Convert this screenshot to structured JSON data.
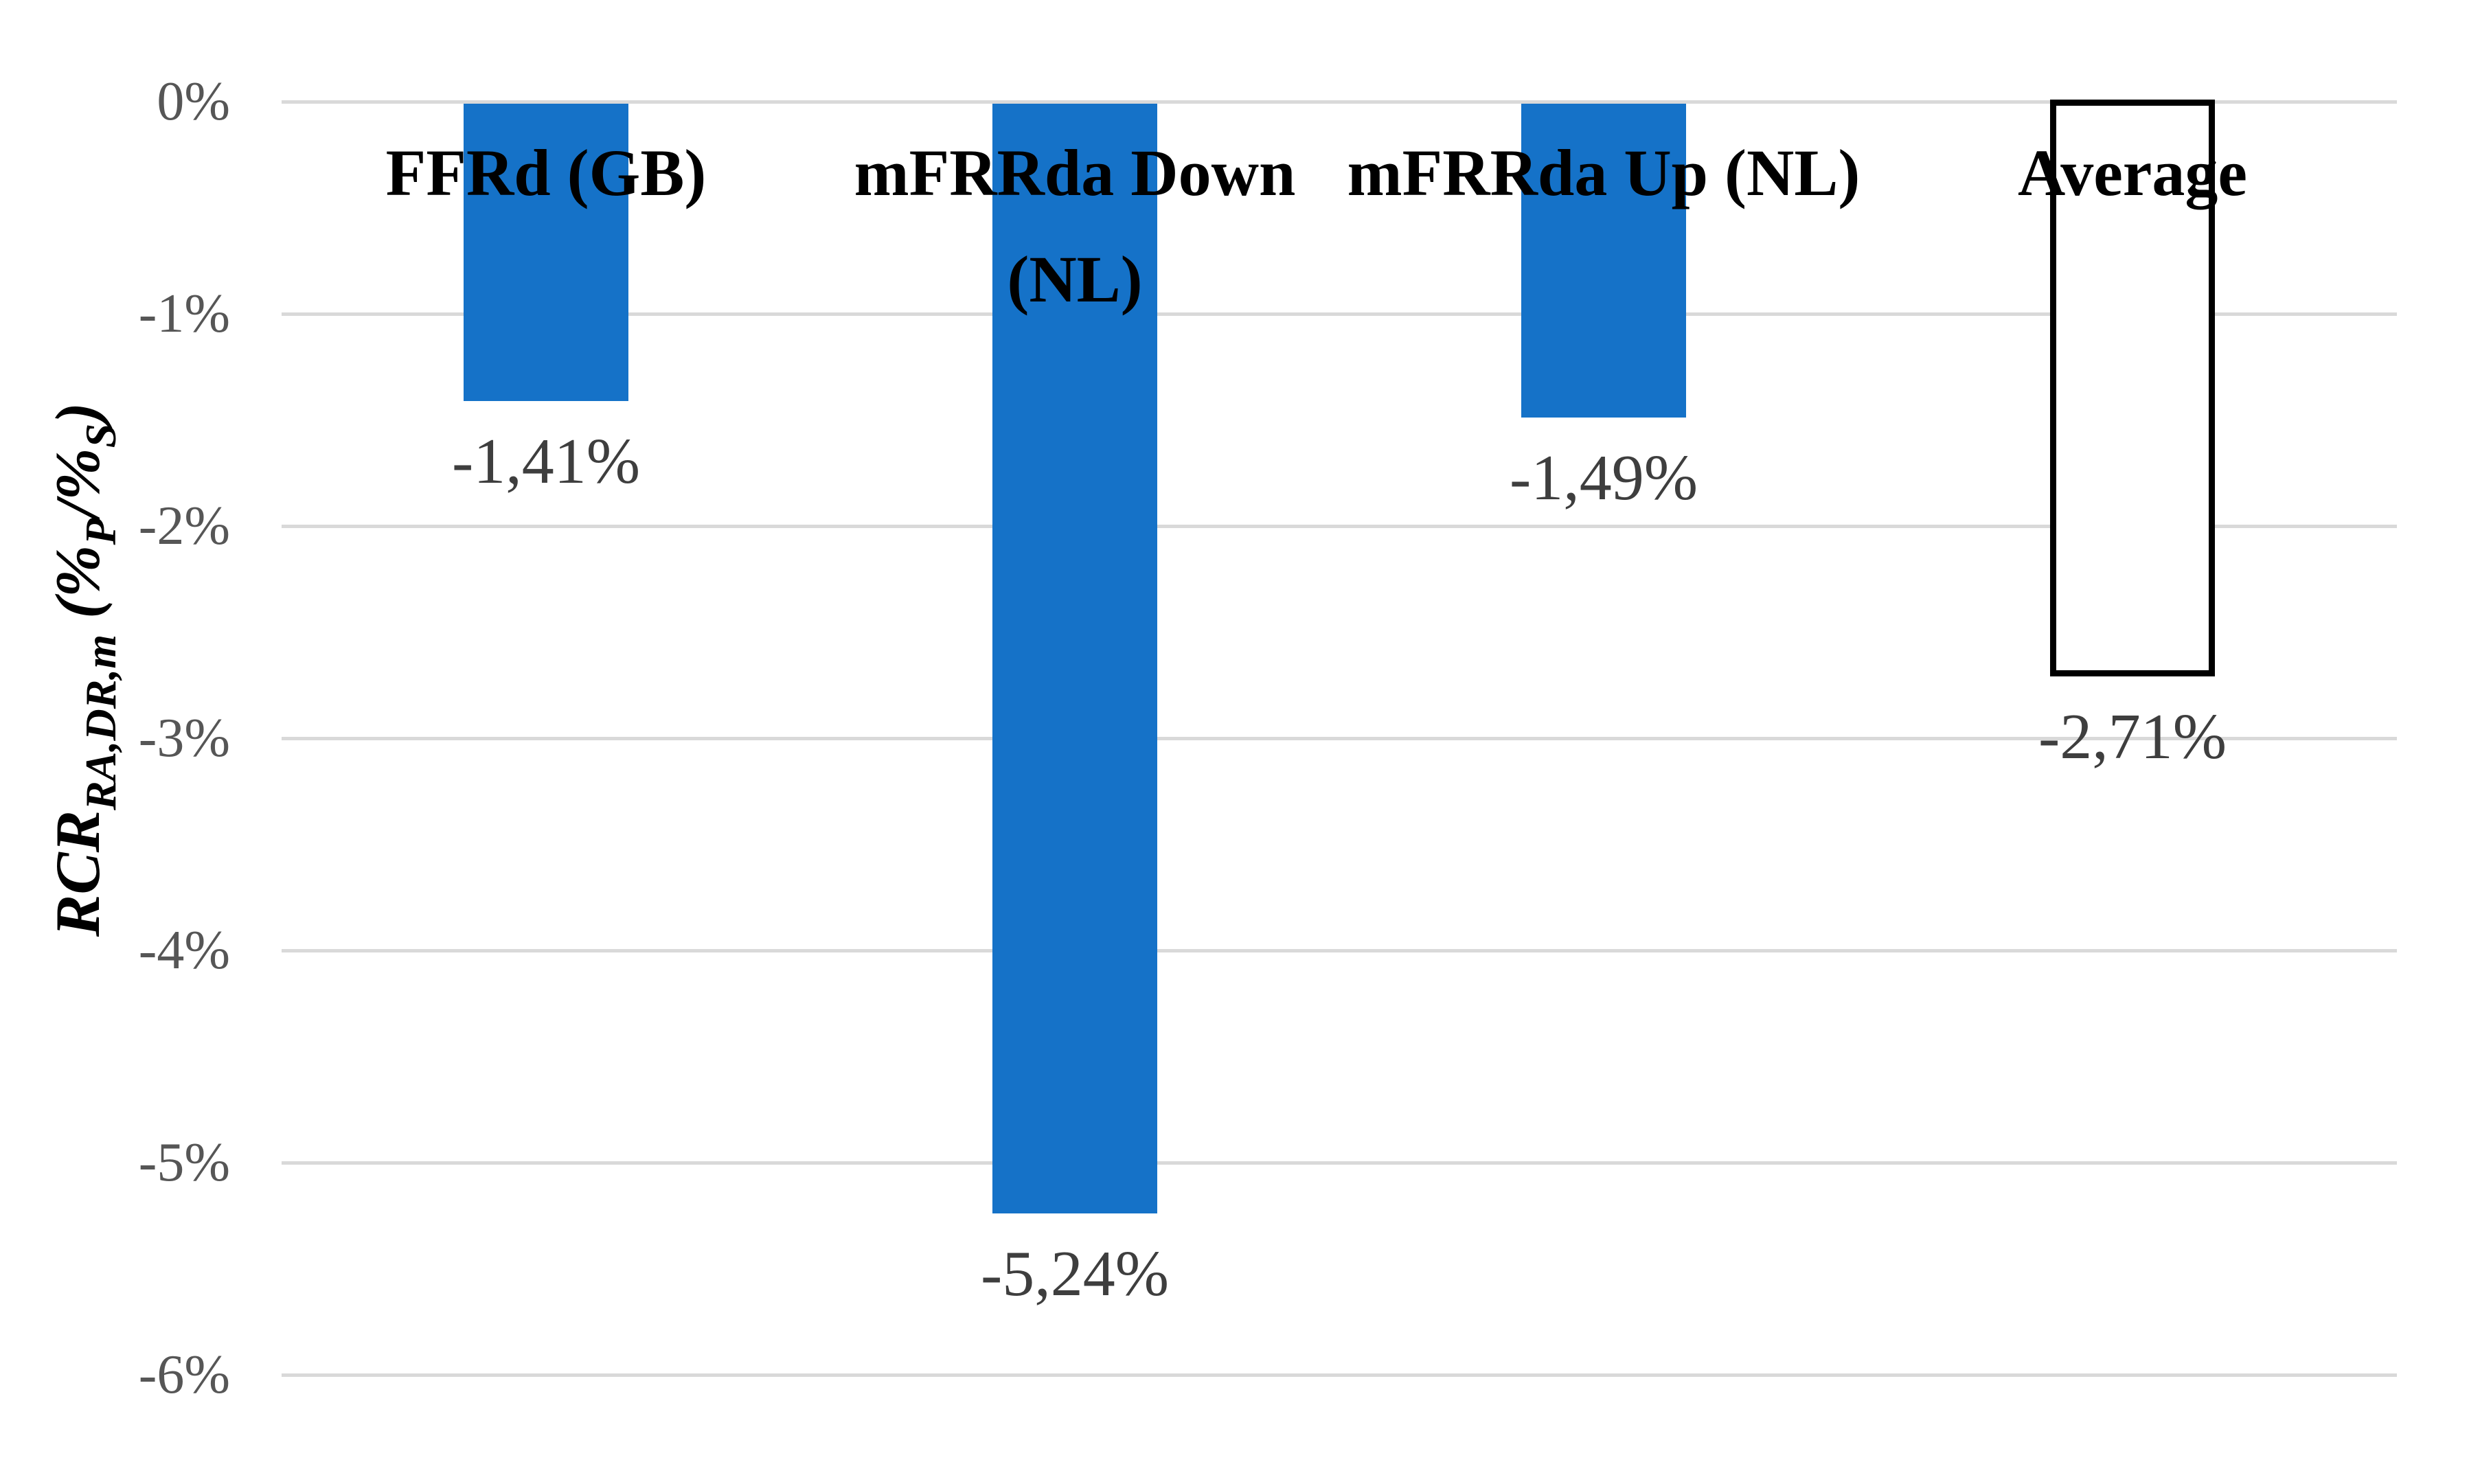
{
  "chart_data": {
    "type": "bar",
    "title": "",
    "categories": [
      "FFRd (GB)",
      "mFRRda Down (NL)",
      "mFRRda Up (NL)",
      "Average"
    ],
    "values": [
      -1.41,
      -5.24,
      -1.49,
      -2.71
    ],
    "data_labels": [
      "-1,41%",
      "-5,24%",
      "-1,49%",
      "-2,71%"
    ],
    "outlined_bar_index": 3,
    "y_axis": {
      "tick_labels": [
        "0%",
        "-1%",
        "-2%",
        "-3%",
        "-4%",
        "-5%",
        "-6%"
      ],
      "tick_values": [
        0,
        -1,
        -2,
        -3,
        -4,
        -5,
        -6
      ],
      "ylim": [
        0,
        -6
      ]
    },
    "xlabel": "",
    "ylabel": "RCR_RA,DR,m (%P/%S)",
    "ylabel_parts": {
      "symbol": "RCR",
      "symbol_subscript": "RA,DR,m",
      "unit_open": " (%",
      "unit_sub_primary": "P",
      "unit_separator": "/%",
      "unit_sub_secondary": "S",
      "unit_close": ")"
    },
    "grid": true,
    "legend": false,
    "colors": {
      "bar_fill": "#1572C8",
      "outlined_bar_fill": "#FFFFFF",
      "outlined_bar_stroke": "#000000",
      "gridline": "#D9D9D9",
      "tick_text": "#565656",
      "data_label_text": "#3E3E3E",
      "category_text": "#000000",
      "background": "#FFFFFF"
    }
  }
}
